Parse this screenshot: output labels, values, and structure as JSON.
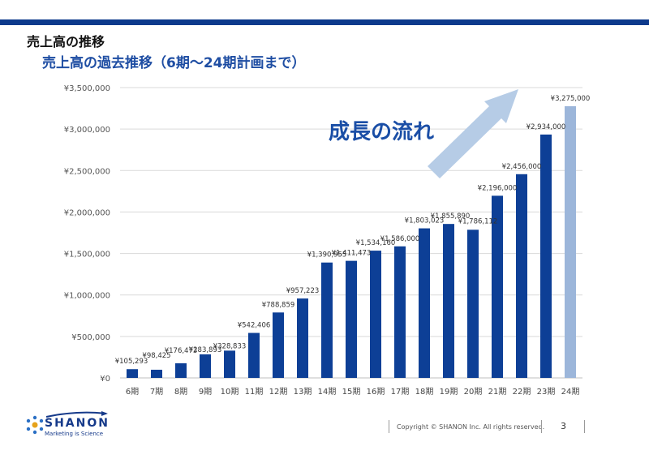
{
  "header": {
    "title": "売上高の推移",
    "subtitle": "売上高の過去推移（6期〜24期計画まで）"
  },
  "chart_data": {
    "type": "bar",
    "title": "売上高の過去推移（6期〜24期計画まで）",
    "categories": [
      "6期",
      "7期",
      "8期",
      "9期",
      "10期",
      "11期",
      "12期",
      "13期",
      "14期",
      "15期",
      "16期",
      "17期",
      "18期",
      "19期",
      "20期",
      "21期",
      "22期",
      "23期",
      "24期"
    ],
    "values": [
      105293,
      98425,
      176473,
      283893,
      328833,
      542406,
      788859,
      957223,
      1390955,
      1411473,
      1534160,
      1586000,
      1803023,
      1855890,
      1786112,
      2196000,
      2456000,
      2934000,
      3275000
    ],
    "data_labels": [
      "¥105,293",
      "¥98,425",
      "¥176,473",
      "¥283,893",
      "¥328,833",
      "¥542,406",
      "¥788,859",
      "¥957,223",
      "¥1,390,955",
      "¥1,411,473",
      "¥1,534,160",
      "¥1,586,000",
      "¥1,803,023",
      "¥1,855,890",
      "¥1,786,112",
      "¥2,196,000",
      "¥2,456,000",
      "¥2,934,000",
      "¥3,275,000"
    ],
    "plan_flags": [
      false,
      false,
      false,
      false,
      false,
      false,
      false,
      false,
      false,
      false,
      false,
      false,
      false,
      false,
      false,
      false,
      false,
      false,
      true
    ],
    "ylim": [
      0,
      3500000
    ],
    "yticks": [
      0,
      500000,
      1000000,
      1500000,
      2000000,
      2500000,
      3000000,
      3500000
    ],
    "ytick_labels": [
      "¥0",
      "¥500,000",
      "¥1,000,000",
      "¥1,500,000",
      "¥2,000,000",
      "¥2,500,000",
      "¥3,000,000",
      "¥3,500,000"
    ],
    "grid": true,
    "xlabel": "",
    "ylabel": "",
    "annotation": "成長の流れ",
    "colors": {
      "actual": "#0d3f96",
      "plan": "#9cb6da",
      "arrow": "#b6cce6",
      "grid": "#d9d9d9"
    }
  },
  "footer": {
    "logo_text": "SHANON",
    "tagline": "Marketing is Science",
    "copyright": "Copyright © SHANON Inc. All rights reserved.",
    "page_number": "3"
  }
}
